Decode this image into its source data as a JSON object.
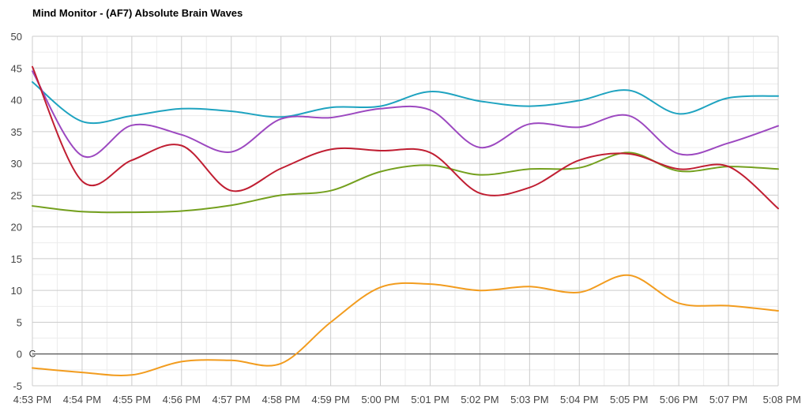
{
  "chart_data": {
    "type": "line",
    "title": "Mind Monitor - (AF7) Absolute Brain Waves",
    "xlabel": "",
    "ylabel": "",
    "ylim": [
      -5,
      50
    ],
    "yticks": [
      -5,
      0,
      5,
      10,
      15,
      20,
      25,
      30,
      35,
      40,
      45,
      50
    ],
    "x": [
      "4:53 PM",
      "4:54 PM",
      "4:55 PM",
      "4:56 PM",
      "4:57 PM",
      "4:58 PM",
      "4:59 PM",
      "5:00 PM",
      "5:01 PM",
      "5:02 PM",
      "5:03 PM",
      "5:04 PM",
      "5:05 PM",
      "5:06 PM",
      "5:07 PM",
      "5:08 PM"
    ],
    "zero_line_marker": "C",
    "grid": true,
    "legend": "none",
    "series": [
      {
        "color": "#1ea3c0",
        "x": [
          0,
          1,
          2,
          3,
          4,
          5,
          6,
          7,
          8,
          9,
          10,
          11,
          12,
          13,
          14,
          15
        ],
        "y": [
          42.8,
          36.6,
          37.5,
          38.6,
          38.2,
          37.3,
          38.8,
          39.0,
          41.3,
          39.8,
          39.0,
          39.9,
          41.5,
          37.8,
          40.3,
          40.6
        ]
      },
      {
        "color": "#9c48c0",
        "x": [
          0,
          1,
          2,
          3,
          4,
          5,
          6,
          7,
          8,
          9,
          10,
          11,
          12,
          13,
          14,
          15
        ],
        "y": [
          44.5,
          31.2,
          36.0,
          34.5,
          31.8,
          37.0,
          37.2,
          38.6,
          38.4,
          32.5,
          36.2,
          35.7,
          37.5,
          31.5,
          33.2,
          35.9
        ]
      },
      {
        "color": "#c01e32",
        "x": [
          0,
          1,
          2,
          3,
          4,
          5,
          6,
          7,
          8,
          9,
          10,
          11,
          12,
          13,
          14,
          15
        ],
        "y": [
          45.2,
          27.2,
          30.5,
          32.8,
          25.7,
          29.2,
          32.2,
          32.0,
          31.7,
          25.3,
          26.2,
          30.5,
          31.5,
          29.1,
          29.5,
          22.9
        ]
      },
      {
        "color": "#74a01e",
        "x": [
          0,
          1,
          2,
          3,
          4,
          5,
          6,
          7,
          8,
          9,
          10,
          11,
          12,
          13,
          14,
          15
        ],
        "y": [
          23.3,
          22.4,
          22.3,
          22.5,
          23.4,
          25.0,
          25.7,
          28.7,
          29.7,
          28.2,
          29.1,
          29.3,
          31.7,
          28.8,
          29.5,
          29.1
        ]
      },
      {
        "color": "#f29c1e",
        "x": [
          0,
          1,
          2,
          3,
          4,
          5,
          6,
          7,
          8,
          9,
          10,
          11,
          12,
          13,
          14,
          15
        ],
        "y": [
          -2.2,
          -2.9,
          -3.3,
          -1.2,
          -1.0,
          -1.5,
          5.0,
          10.5,
          11.0,
          10.0,
          10.6,
          9.7,
          12.4,
          8.0,
          7.6,
          6.8
        ]
      }
    ]
  }
}
